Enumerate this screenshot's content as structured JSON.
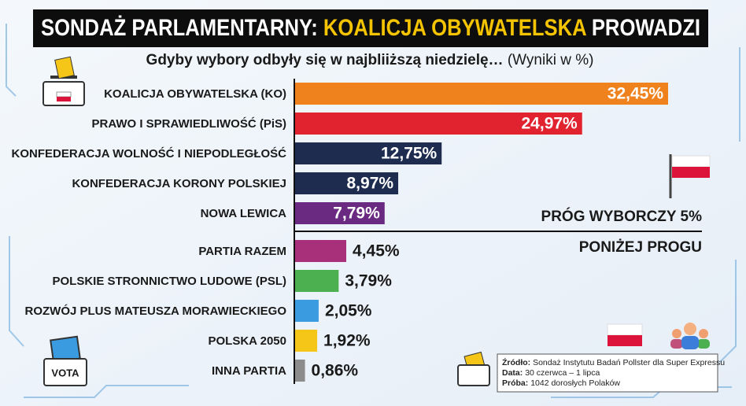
{
  "chart_data": {
    "type": "bar",
    "orientation": "horizontal",
    "title": {
      "lead": "SONDAŻ PARLAMENTARNY:",
      "highlight": "KOALICJA OBYWATELSKA",
      "tail": "PROWADZI"
    },
    "subtitle": {
      "main": "Gdyby wybory odbyły się w najbliiższą niedzielę…",
      "note": "(Wyniki w %)"
    },
    "categories": [
      "KOALICJA OBYWATELSKA (KO)",
      "PRAWO I SPRAWIEDLIWOŚĆ (PiS)",
      "KONFEDERACJA WOLNOŚĆ I NIEPODLEGŁOŚĆ",
      "KONFEDERACJA KORONY POLSKIEJ",
      "NOWA LEWICA",
      "PARTIA RAZEM",
      "POLSKIE STRONNICTWO LUDOWE (PSL)",
      "ROZWÓJ PLUS MATEUSZA MORAWIECKIEGO",
      "POLSKA 2050",
      "INNA PARTIA"
    ],
    "values": [
      32.45,
      24.97,
      12.75,
      8.97,
      7.79,
      4.45,
      3.79,
      2.05,
      1.92,
      0.86
    ],
    "value_labels": [
      "32,45%",
      "24,97%",
      "12,75%",
      "8,97%",
      "7,79%",
      "4,45%",
      "3,79%",
      "2,05%",
      "1,92%",
      "0,86%"
    ],
    "colors": [
      "#f0821e",
      "#e0232e",
      "#1e2d4f",
      "#1e2d4f",
      "#6a2a82",
      "#a8307a",
      "#4caf50",
      "#3b9be0",
      "#f5c518",
      "#8c8c8c"
    ],
    "threshold": {
      "label": "PRÓG WYBORCZY 5%",
      "below_label": "PONIŻEJ PROGU"
    },
    "source": {
      "source_key": "Źródło:",
      "source_text": "Sondaż Instytutu Badań Pollster dla Super Expressu",
      "date_key": "Data:",
      "date_text": "30 czerwca – 1 lipca",
      "sample_key": "Próba:",
      "sample_text": "1042 dorosłych Polaków"
    }
  },
  "decor": {
    "ballot_label": "VOTA"
  }
}
